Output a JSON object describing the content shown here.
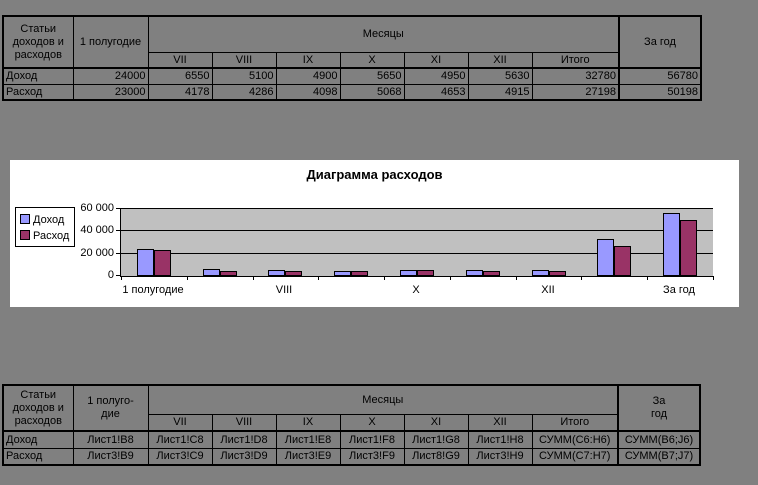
{
  "colors": {
    "page_bg": "#808080",
    "chart_bg": "#FFFFFF",
    "plot_bg": "#C0C0C0",
    "income_bar": "#9999FF",
    "expense_bar": "#993366",
    "text": "#000000",
    "border": "#000000"
  },
  "top_table": {
    "corner_lines": [
      "Статьи",
      "доходов и",
      "расходов"
    ],
    "period_lines": [
      "1 полугодие"
    ],
    "months_label": "Месяцы",
    "month_columns": [
      "VII",
      "VIII",
      "IX",
      "X",
      "XI",
      "XII",
      "Итого"
    ],
    "year_lines": [
      "За год"
    ],
    "rows": [
      {
        "label": "Доход",
        "period": "24000",
        "cells": [
          "6550",
          "5100",
          "4900",
          "5650",
          "4950",
          "5630",
          "32780"
        ],
        "year": "56780"
      },
      {
        "label": "Расход",
        "period": "23000",
        "cells": [
          "4178",
          "4286",
          "4098",
          "5068",
          "4653",
          "4915",
          "27198"
        ],
        "year": "50198"
      }
    ]
  },
  "bottom_table": {
    "corner_lines": [
      "Статьи",
      "доходов и",
      "расходов"
    ],
    "period_lines": [
      "1 полуго-",
      "дие"
    ],
    "months_label": "Месяцы",
    "month_columns": [
      "VII",
      "VIII",
      "IX",
      "X",
      "XI",
      "XII",
      "Итого"
    ],
    "year_lines": [
      "За",
      "год"
    ],
    "rows": [
      {
        "label": "Доход",
        "period": "Лист1!B8",
        "cells": [
          "Лист1!C8",
          "Лист1!D8",
          "Лист1!E8",
          "Лист1!F8",
          "Лист1!G8",
          "Лист1!H8",
          "СУММ(C6:H6)"
        ],
        "year": "СУММ(B6;J6)"
      },
      {
        "label": "Расход",
        "period": "Лист3!B9",
        "cells": [
          "Лист3!C9",
          "Лист3!D9",
          "Лист3!E9",
          "Лист3!F9",
          "Лист8!G9",
          "Лист3!H9",
          "СУММ(C7:H7)"
        ],
        "year": "СУММ(B7;J7)"
      }
    ]
  },
  "chart_data": {
    "type": "bar",
    "title": "Диаграмма расходов",
    "categories": [
      "1 полугодие",
      "VII",
      "VIII",
      "IX",
      "X",
      "XI",
      "XII",
      "Итого",
      "За год"
    ],
    "x_tick_labels": [
      "1 полугодие",
      "VIII",
      "X",
      "XII",
      "За год"
    ],
    "series": [
      {
        "name": "Доход",
        "color": "#9999FF",
        "values": [
          24000,
          6550,
          5100,
          4900,
          5650,
          4950,
          5630,
          32780,
          56780
        ]
      },
      {
        "name": "Расход",
        "color": "#993366",
        "values": [
          23000,
          4178,
          4286,
          4098,
          5068,
          4653,
          4915,
          27198,
          50198
        ]
      }
    ],
    "ylim": [
      0,
      60000
    ],
    "y_ticks": [
      {
        "value": 0,
        "label": "0"
      },
      {
        "value": 20000,
        "label": "20 000"
      },
      {
        "value": 40000,
        "label": "40 000"
      },
      {
        "value": 60000,
        "label": "60 000"
      }
    ],
    "legend_position": "left",
    "grid": true
  }
}
